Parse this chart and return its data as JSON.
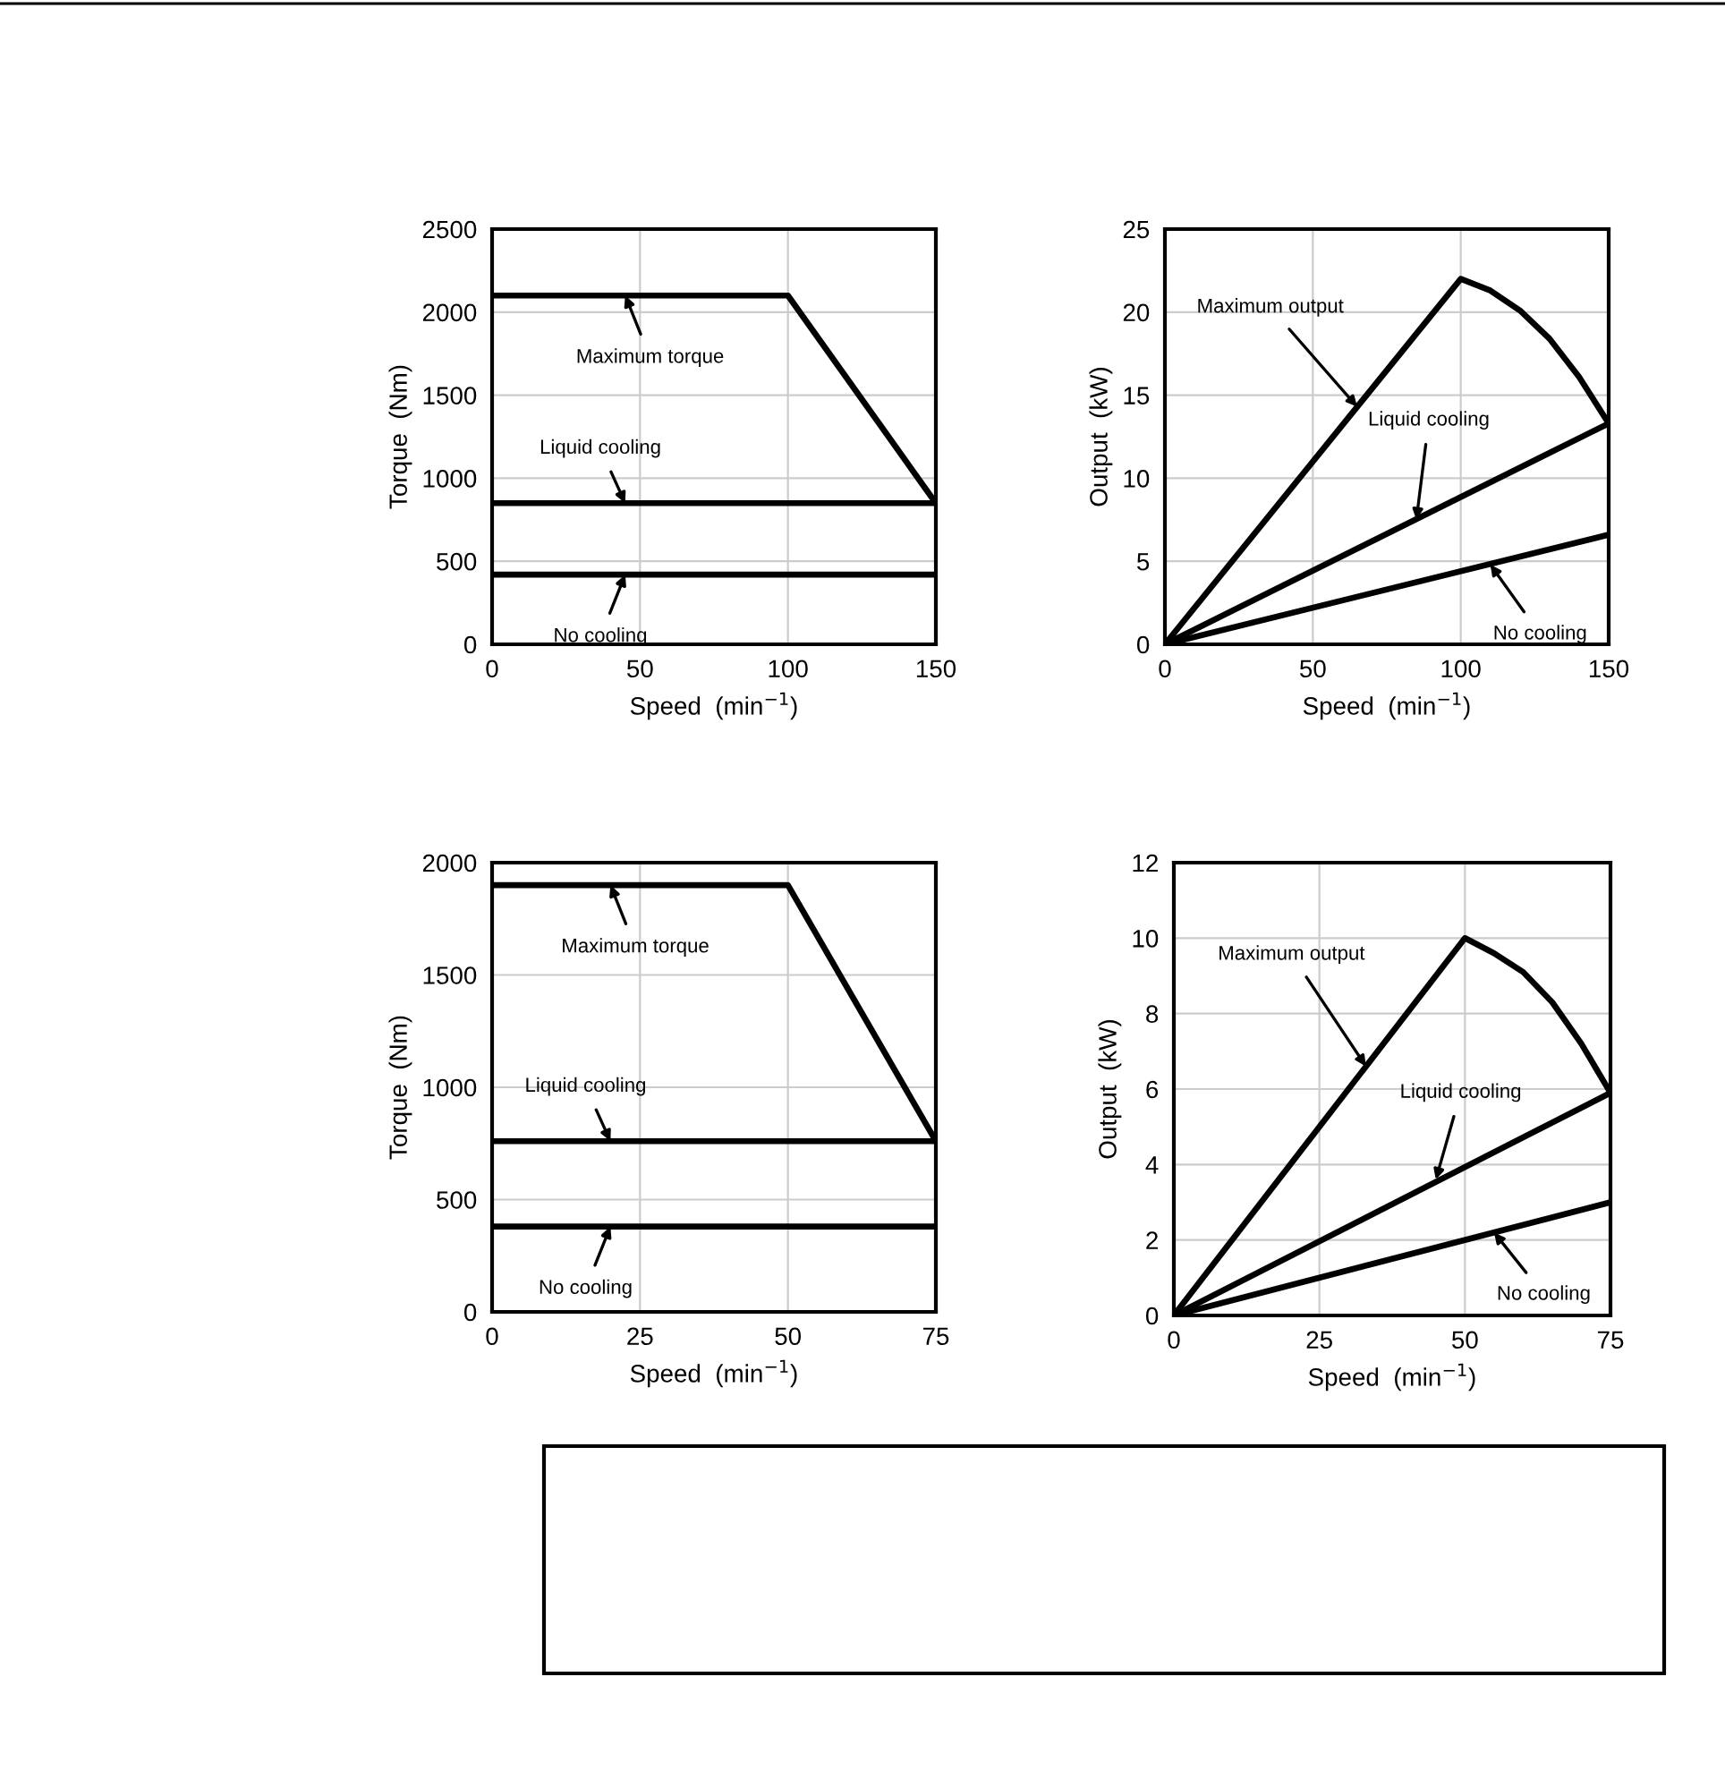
{
  "chart_data": [
    {
      "type": "line",
      "xlabel": "Speed  (min$^{−1}$)",
      "ylabel": "Torque  (Nm)",
      "xlim": [
        0,
        150
      ],
      "xticks": [
        0,
        50,
        100,
        150
      ],
      "ylim": [
        0,
        2500
      ],
      "yticks": [
        0,
        500,
        1000,
        1500,
        2000,
        2500
      ],
      "grid": true,
      "legend": false,
      "series": [
        {
          "color": "#000000",
          "x": [
            0,
            100,
            150
          ],
          "values": [
            2100,
            2100,
            850
          ]
        },
        {
          "color": "#000000",
          "x": [
            0,
            150
          ],
          "values": [
            850,
            850
          ]
        },
        {
          "color": "#000000",
          "x": [
            0,
            150
          ],
          "values": [
            420,
            420
          ]
        }
      ],
      "annotations": [
        {
          "text": "Maximum torque",
          "x": 45,
          "y": 2100
        },
        {
          "text": "Liquid cooling",
          "x": 45,
          "y": 850
        },
        {
          "text": "No cooling",
          "x": 45,
          "y": 420
        }
      ]
    },
    {
      "type": "line",
      "xlabel": "Speed  (min$^{−1}$)",
      "ylabel": "Output  (kW)",
      "xlim": [
        0,
        150
      ],
      "xticks": [
        0,
        50,
        100,
        150
      ],
      "ylim": [
        0,
        25
      ],
      "yticks": [
        0,
        5,
        10,
        15,
        20,
        25
      ],
      "grid": true,
      "legend": false,
      "series": [
        {
          "color": "#000000",
          "x": [
            0,
            100,
            110,
            120,
            130,
            140,
            150
          ],
          "values": [
            0,
            22,
            21.3,
            20.1,
            18.4,
            16.1,
            13.3
          ]
        },
        {
          "color": "#000000",
          "x": [
            0,
            150
          ],
          "values": [
            0,
            13.3
          ]
        },
        {
          "color": "#000000",
          "x": [
            0,
            150
          ],
          "values": [
            0,
            6.6
          ]
        }
      ],
      "annotations": [
        {
          "text": "Maximum output",
          "x": 65,
          "y": 14.3
        },
        {
          "text": "Liquid cooling",
          "x": 85,
          "y": 7.5
        },
        {
          "text": "No cooling",
          "x": 110,
          "y": 4.8
        }
      ]
    },
    {
      "type": "line",
      "xlabel": "Speed  (min$^{−1}$)",
      "ylabel": "Torque  (Nm)",
      "xlim": [
        0,
        75
      ],
      "xticks": [
        0,
        25,
        50,
        75
      ],
      "ylim": [
        0,
        2000
      ],
      "yticks": [
        0,
        500,
        1000,
        1500,
        2000
      ],
      "grid": true,
      "legend": false,
      "series": [
        {
          "color": "#000000",
          "x": [
            0,
            50,
            75
          ],
          "values": [
            1900,
            1900,
            760
          ]
        },
        {
          "color": "#000000",
          "x": [
            0,
            75
          ],
          "values": [
            760,
            760
          ]
        },
        {
          "color": "#000000",
          "x": [
            0,
            75
          ],
          "values": [
            380,
            380
          ]
        }
      ],
      "annotations": [
        {
          "text": "Maximum torque",
          "x": 20,
          "y": 1900
        },
        {
          "text": "Liquid cooling",
          "x": 20,
          "y": 760
        },
        {
          "text": "No cooling",
          "x": 20,
          "y": 380
        }
      ]
    },
    {
      "type": "line",
      "xlabel": "Speed  (min$^{−1}$)",
      "ylabel": "Output  (kW)",
      "xlim": [
        0,
        75
      ],
      "xticks": [
        0,
        25,
        50,
        75
      ],
      "ylim": [
        0,
        12
      ],
      "yticks": [
        0,
        2,
        4,
        6,
        8,
        10,
        12
      ],
      "grid": true,
      "legend": false,
      "series": [
        {
          "color": "#000000",
          "x": [
            0,
            50,
            55,
            60,
            65,
            70,
            75
          ],
          "values": [
            0,
            10,
            9.6,
            9.1,
            8.3,
            7.2,
            5.9
          ]
        },
        {
          "color": "#000000",
          "x": [
            0,
            75
          ],
          "values": [
            0,
            5.9
          ]
        },
        {
          "color": "#000000",
          "x": [
            0,
            75
          ],
          "values": [
            0,
            3.0
          ]
        }
      ],
      "annotations": [
        {
          "text": "Maximum output",
          "x": 33,
          "y": 6.6
        },
        {
          "text": "Liquid cooling",
          "x": 45,
          "y": 3.6
        },
        {
          "text": "No cooling",
          "x": 55,
          "y": 2.2
        }
      ]
    }
  ]
}
